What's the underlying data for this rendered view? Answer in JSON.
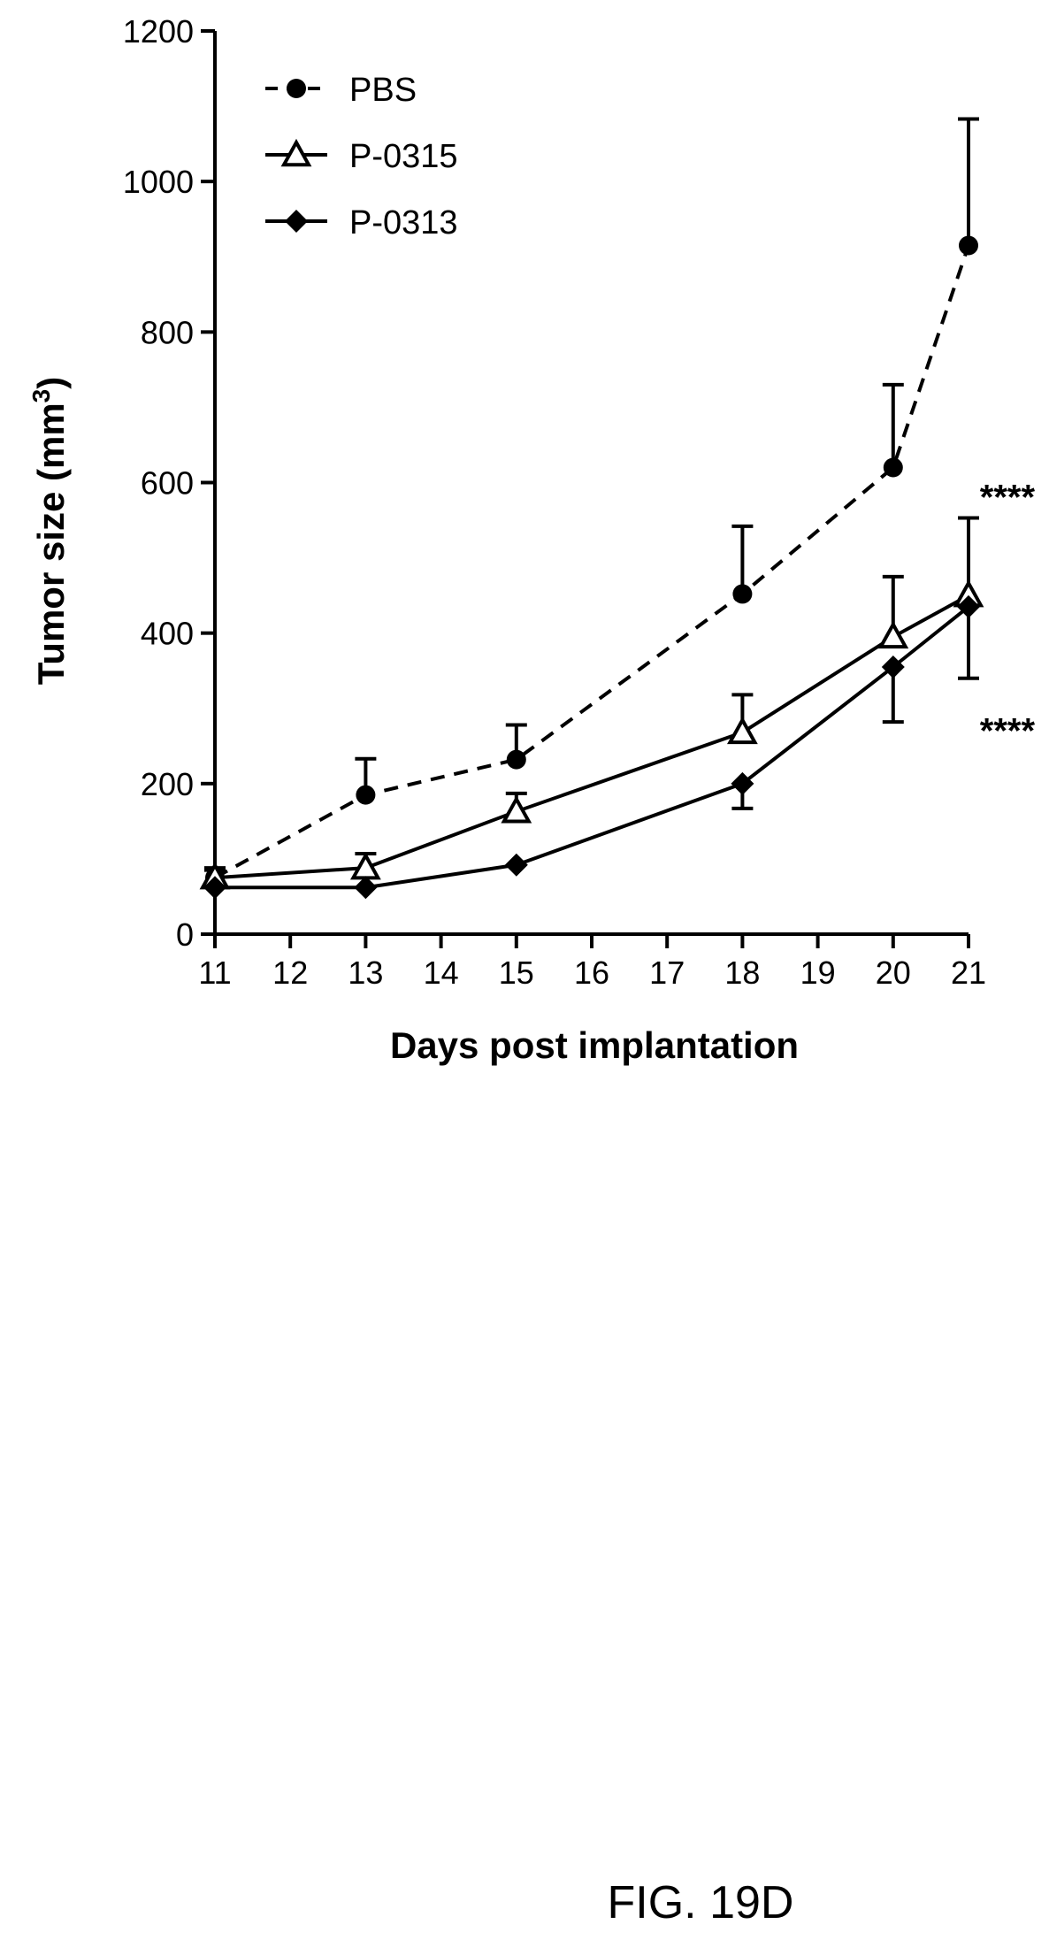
{
  "chart_data": {
    "type": "line",
    "title": "",
    "xlabel": "Days post implantation",
    "ylabel": "Tumor size (mm",
    "ylabel_superscript": "3",
    "ylabel_close": ")",
    "xlim": [
      11,
      21
    ],
    "ylim": [
      0,
      1200
    ],
    "x_ticks": [
      11,
      12,
      13,
      14,
      15,
      16,
      17,
      18,
      19,
      20,
      21
    ],
    "y_ticks": [
      0,
      200,
      400,
      600,
      800,
      1000,
      1200
    ],
    "grid": false,
    "legend_position": "top-left",
    "series": [
      {
        "name": "PBS",
        "line_style": "dashed",
        "marker": "filled-circle",
        "x": [
          11,
          13,
          15,
          18,
          20,
          21
        ],
        "y": [
          75,
          185,
          232,
          452,
          620,
          915
        ],
        "error_upper": [
          85,
          233,
          278,
          542,
          730,
          1083
        ],
        "error_lower": [
          null,
          null,
          null,
          null,
          null,
          null
        ]
      },
      {
        "name": "P-0315",
        "line_style": "solid",
        "marker": "open-triangle",
        "x": [
          11,
          13,
          15,
          18,
          20,
          21
        ],
        "y": [
          75,
          88,
          163,
          268,
          395,
          450
        ],
        "error_upper": [
          88,
          107,
          187,
          318,
          475,
          553
        ],
        "error_lower": [
          null,
          null,
          null,
          null,
          null,
          null
        ]
      },
      {
        "name": "P-0313",
        "line_style": "solid",
        "marker": "filled-diamond",
        "x": [
          11,
          13,
          15,
          18,
          20,
          21
        ],
        "y": [
          62,
          62,
          92,
          200,
          355,
          435
        ],
        "error_upper": [
          null,
          null,
          null,
          null,
          null,
          null
        ],
        "error_lower": [
          null,
          null,
          null,
          167,
          282,
          340
        ]
      }
    ],
    "annotations": [
      {
        "text": "****",
        "x": 21.15,
        "y": 600
      },
      {
        "text": "****",
        "x": 21.15,
        "y": 290
      }
    ]
  },
  "figure_caption": "FIG. 19D",
  "colors": {
    "ink": "#000000",
    "background": "#ffffff"
  }
}
